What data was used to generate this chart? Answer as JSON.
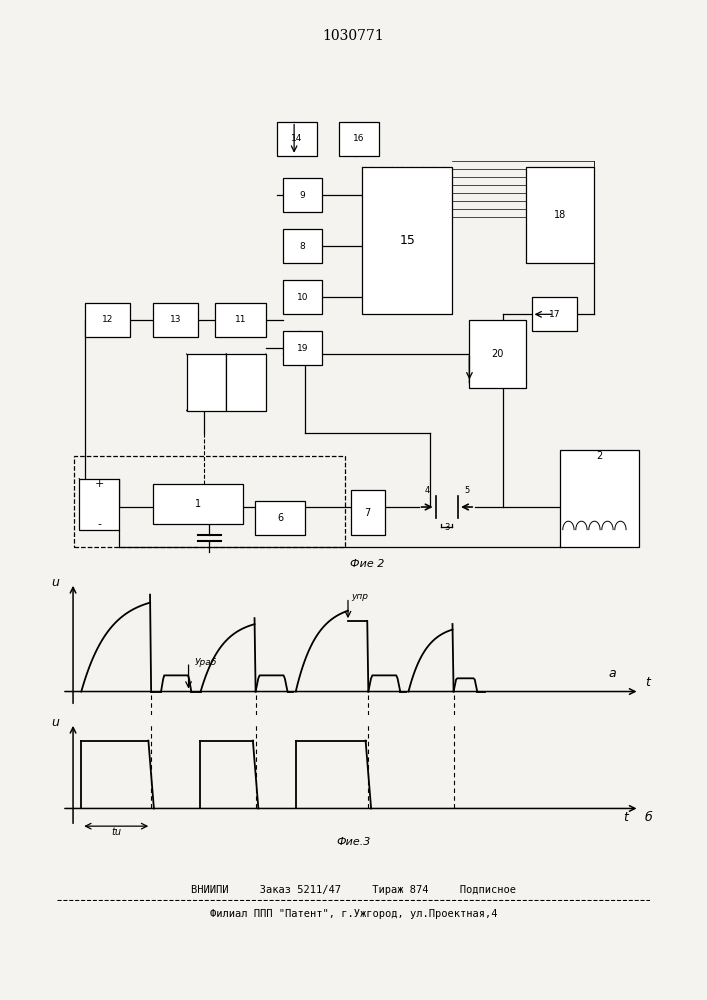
{
  "title": "1030771",
  "fig3_label": "Фие.3",
  "fig2_label": "Фие 2",
  "bottom_line1": "ВНИИПИ     Заказ 5211/47     Тираж 874     Подписное",
  "bottom_line2": "Филиал ППП \"Патент\", г.Ужгород, ул.Проектная,4",
  "u_label": "u",
  "t_label": "t",
  "a_label": "a",
  "b_label": "б",
  "u_prob_label": "Ураб",
  "u_pr_label": "упр",
  "tu_label": "tu",
  "bg_color": "#f5f3ef"
}
